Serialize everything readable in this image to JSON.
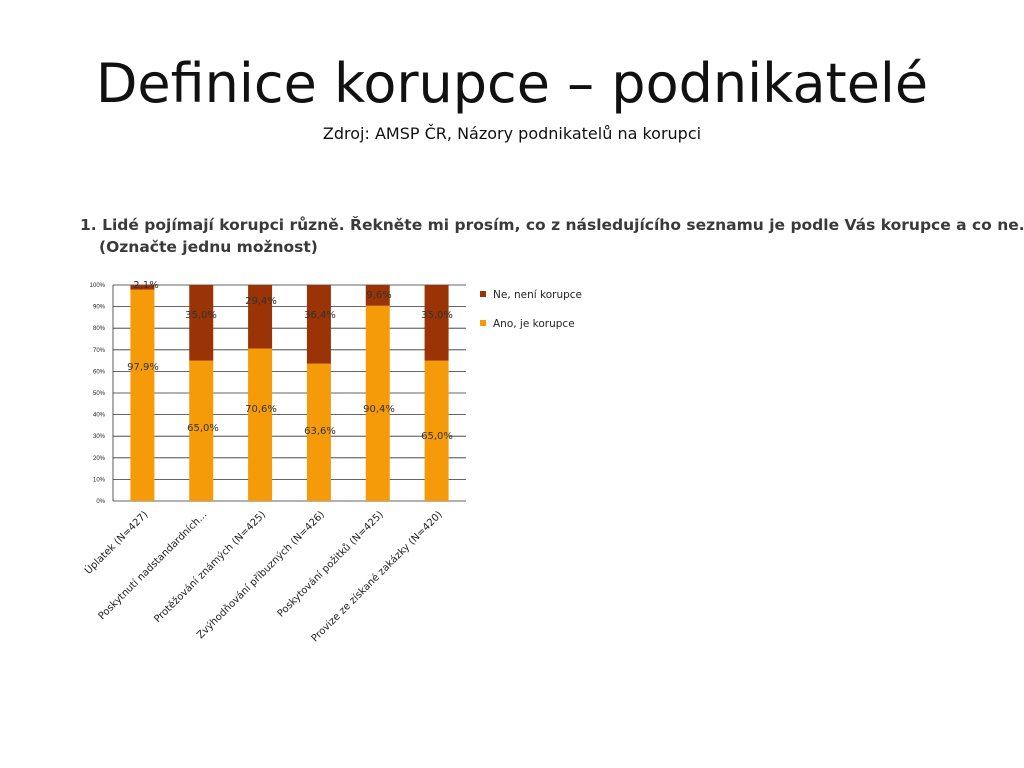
{
  "slide": {
    "title": "Definice korupce – podnikatelé",
    "subtitle": "Zdroj: AMSP ČR, Názory podnikatelů na korupci",
    "question_line1": "1. Lidé pojímají korupci různě. Řekněte mi prosím, co z následujícího seznamu je podle Vás korupce a co ne.",
    "question_line2": "(Označte jednu možnost)"
  },
  "chart_data": {
    "type": "bar",
    "stacked": true,
    "percent": true,
    "categories": [
      "Úplatek (N=427)",
      "Poskytnutí nadstandardních...",
      "Protěžování známých (N=425)",
      "Zvýhodňování příbuzných (N=426)",
      "Poskytování požitků (N=425)",
      "Provize ze získané zakázky (N=420)"
    ],
    "series": [
      {
        "name": "Ano, je korupce",
        "color": "#f59a09",
        "values": [
          97.9,
          65.0,
          70.6,
          63.6,
          90.4,
          65.0
        ],
        "labels": [
          "97,9%",
          "65,0%",
          "70,6%",
          "63,6%",
          "90,4%",
          "65,0%"
        ]
      },
      {
        "name": "Ne, není korupce",
        "color": "#9a3306",
        "values": [
          2.1,
          35.0,
          29.4,
          36.4,
          9.6,
          35.0
        ],
        "labels": [
          "2,1%",
          "35,0%",
          "29,4%",
          "36,4%",
          "9,6%",
          "35,0%"
        ]
      }
    ],
    "ylim": [
      0,
      100
    ],
    "yticks": [
      "0%",
      "10%",
      "20%",
      "30%",
      "40%",
      "50%",
      "60%",
      "70%",
      "80%",
      "90%",
      "100%"
    ],
    "grid": true,
    "legend_position": "right"
  }
}
